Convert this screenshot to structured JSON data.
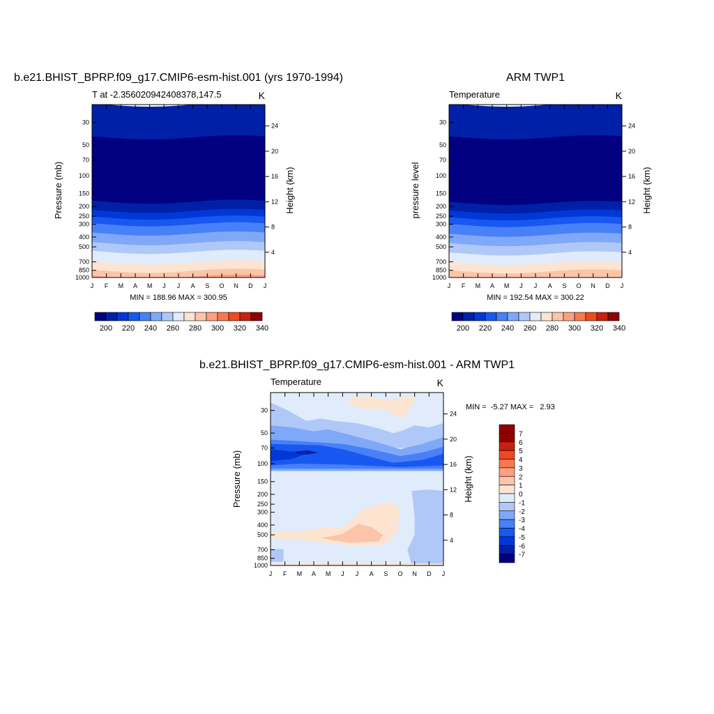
{
  "chart_data": [
    {
      "type": "heatmap",
      "id": "model",
      "main_title": "b.e21.BHIST_BPRP.f09_g17.CMIP6-esm-hist.001 (yrs 1970-1994)",
      "left_string": "T at -2.356020942408378,147.5",
      "right_string": "K",
      "ylabel": "Pressure (mb)",
      "ylabel_right": "Height (km)",
      "x_ticks": [
        "J",
        "F",
        "M",
        "A",
        "M",
        "J",
        "J",
        "A",
        "S",
        "O",
        "N",
        "D",
        "J"
      ],
      "y_ticks": [
        30,
        50,
        70,
        100,
        150,
        200,
        250,
        300,
        400,
        500,
        700,
        850,
        1000
      ],
      "y_ticks_right": [
        24,
        20,
        16,
        12,
        8,
        4
      ],
      "ylim": [
        1000,
        20
      ],
      "scale": "log-pressure",
      "stats": "MIN = 188.96 MAX = 300.95",
      "levels": [
        200,
        210,
        220,
        230,
        240,
        250,
        260,
        270,
        280,
        290,
        300,
        310,
        320,
        330,
        340
      ],
      "colorbar_labels": [
        "200",
        "220",
        "240",
        "260",
        "280",
        "300",
        "320",
        "340"
      ],
      "colorbar_orientation": "horizontal",
      "bands": [
        {
          "top": 20,
          "bottom": 42,
          "value": 215
        },
        {
          "top": 42,
          "bottom": 65,
          "value": 205
        },
        {
          "top": 65,
          "bottom": 140,
          "value": 195
        },
        {
          "top": 140,
          "bottom": 180,
          "value": 205
        },
        {
          "top": 180,
          "bottom": 222,
          "value": 215
        },
        {
          "top": 222,
          "bottom": 258,
          "value": 225
        },
        {
          "top": 258,
          "bottom": 300,
          "value": 235
        },
        {
          "top": 300,
          "bottom": 370,
          "value": 245
        },
        {
          "top": 370,
          "bottom": 460,
          "value": 255
        },
        {
          "top": 460,
          "bottom": 560,
          "value": 265
        },
        {
          "top": 560,
          "bottom": 710,
          "value": 275
        },
        {
          "top": 710,
          "bottom": 860,
          "value": 285
        },
        {
          "top": 860,
          "bottom": 980,
          "value": 295
        },
        {
          "top": 980,
          "bottom": 1000,
          "value": 305
        }
      ]
    },
    {
      "type": "heatmap",
      "id": "obs",
      "main_title": "ARM TWP1",
      "left_string": "Temperature",
      "right_string": "K",
      "ylabel": "pressure level",
      "ylabel_right": "Height (km)",
      "x_ticks": [
        "J",
        "F",
        "M",
        "A",
        "M",
        "J",
        "J",
        "A",
        "S",
        "O",
        "N",
        "D",
        "J"
      ],
      "y_ticks": [
        30,
        50,
        70,
        100,
        150,
        200,
        250,
        300,
        400,
        500,
        700,
        850,
        1000
      ],
      "y_ticks_right": [
        24,
        20,
        16,
        12,
        8,
        4
      ],
      "ylim": [
        1000,
        20
      ],
      "scale": "log-pressure",
      "stats": "MIN = 192.54 MAX = 300.22",
      "levels": [
        200,
        210,
        220,
        230,
        240,
        250,
        260,
        270,
        280,
        290,
        300,
        310,
        320,
        330,
        340
      ],
      "colorbar_labels": [
        "200",
        "220",
        "240",
        "260",
        "280",
        "300",
        "320",
        "340"
      ],
      "colorbar_orientation": "horizontal",
      "bands": [
        {
          "top": 20,
          "bottom": 42,
          "value": 215
        },
        {
          "top": 42,
          "bottom": 62,
          "value": 205
        },
        {
          "top": 62,
          "bottom": 140,
          "value": 195
        },
        {
          "top": 140,
          "bottom": 185,
          "value": 205
        },
        {
          "top": 185,
          "bottom": 225,
          "value": 215
        },
        {
          "top": 225,
          "bottom": 262,
          "value": 225
        },
        {
          "top": 262,
          "bottom": 305,
          "value": 235
        },
        {
          "top": 305,
          "bottom": 380,
          "value": 245
        },
        {
          "top": 380,
          "bottom": 470,
          "value": 255
        },
        {
          "top": 470,
          "bottom": 580,
          "value": 265
        },
        {
          "top": 580,
          "bottom": 720,
          "value": 275
        },
        {
          "top": 720,
          "bottom": 870,
          "value": 285
        },
        {
          "top": 870,
          "bottom": 1000,
          "value": 295
        }
      ]
    },
    {
      "type": "heatmap",
      "id": "diff",
      "main_title": "b.e21.BHIST_BPRP.f09_g17.CMIP6-esm-hist.001 - ARM TWP1",
      "left_string": "Temperature",
      "right_string": "K",
      "ylabel": "Pressure (mb)",
      "ylabel_right": "Height (km)",
      "x_ticks": [
        "J",
        "F",
        "M",
        "A",
        "M",
        "J",
        "J",
        "A",
        "S",
        "O",
        "N",
        "D",
        "J"
      ],
      "y_ticks": [
        30,
        50,
        70,
        100,
        150,
        200,
        250,
        300,
        400,
        500,
        700,
        850,
        1000
      ],
      "y_ticks_right": [
        24,
        20,
        16,
        12,
        8,
        4
      ],
      "ylim": [
        1000,
        20
      ],
      "scale": "log-pressure",
      "stats": "MIN =  -5.27 MAX =   2.93",
      "levels": [
        -7,
        -6,
        -5,
        -4,
        -3,
        -2,
        -1,
        0,
        1,
        2,
        3,
        4,
        5,
        6,
        7
      ],
      "colorbar_labels": [
        "7",
        "6",
        "5",
        "4",
        "3",
        "2",
        "1",
        "0",
        "-1",
        "-2",
        "-3",
        "-4",
        "-5",
        "-6",
        "-7"
      ],
      "colorbar_orientation": "vertical",
      "background_value": 0.5,
      "regions": [
        {
          "value": -0.5,
          "points": [
            [
              0,
              25
            ],
            [
              1.2,
              30
            ],
            [
              2.5,
              38
            ],
            [
              3.5,
              36
            ],
            [
              4.5,
              38
            ],
            [
              6,
              40
            ],
            [
              7.5,
              45
            ],
            [
              8.5,
              50
            ],
            [
              9.2,
              47
            ],
            [
              10,
              42
            ],
            [
              11,
              44
            ],
            [
              12,
              40
            ],
            [
              12,
              70
            ],
            [
              0,
              70
            ]
          ]
        },
        {
          "value": -1.5,
          "points": [
            [
              0,
              42
            ],
            [
              1.5,
              44
            ],
            [
              3,
              48
            ],
            [
              4,
              46
            ],
            [
              5.5,
              52
            ],
            [
              7.5,
              62
            ],
            [
              9,
              72
            ],
            [
              10.5,
              64
            ],
            [
              12,
              55
            ],
            [
              12,
              118
            ],
            [
              0,
              118
            ]
          ]
        },
        {
          "value": -2.5,
          "points": [
            [
              0,
              58
            ],
            [
              2,
              60
            ],
            [
              3.5,
              62
            ],
            [
              5,
              64
            ],
            [
              7,
              72
            ],
            [
              9,
              84
            ],
            [
              10.5,
              78
            ],
            [
              12,
              68
            ],
            [
              12,
              112
            ],
            [
              0,
              112
            ]
          ]
        },
        {
          "value": -3.5,
          "points": [
            [
              0,
              64
            ],
            [
              2,
              65
            ],
            [
              3.5,
              66
            ],
            [
              5,
              72
            ],
            [
              7,
              86
            ],
            [
              8.5,
              98
            ],
            [
              10.5,
              92
            ],
            [
              12,
              80
            ],
            [
              12,
              104
            ],
            [
              9,
              108
            ],
            [
              5,
              102
            ],
            [
              2,
              100
            ],
            [
              0,
              104
            ]
          ]
        },
        {
          "value": -4.5,
          "points": [
            [
              0,
              72
            ],
            [
              1.5,
              76
            ],
            [
              2.5,
              80
            ],
            [
              1.5,
              90
            ],
            [
              0,
              94
            ]
          ]
        },
        {
          "value": -5.5,
          "points": [
            [
              1.7,
              76
            ],
            [
              2.6,
              74
            ],
            [
              3.3,
              78
            ],
            [
              2.6,
              81
            ],
            [
              1.8,
              80
            ]
          ]
        },
        {
          "value": 1.5,
          "points": [
            [
              5.5,
              22
            ],
            [
              7,
              22
            ],
            [
              8,
              24
            ],
            [
              9.3,
              22
            ],
            [
              10.2,
              22
            ],
            [
              9.7,
              28
            ],
            [
              9.2,
              36
            ],
            [
              8.5,
              33
            ],
            [
              8,
              29
            ],
            [
              6.5,
              29
            ],
            [
              5.5,
              26
            ]
          ]
        },
        {
          "value": -0.5,
          "points": [
            [
              9.8,
              185
            ],
            [
              11,
              180
            ],
            [
              12,
              185
            ],
            [
              12,
              990
            ],
            [
              9.8,
              990
            ],
            [
              9.5,
              700
            ],
            [
              10,
              500
            ],
            [
              10,
              330
            ]
          ]
        },
        {
          "value": -0.5,
          "points": [
            [
              0,
              690
            ],
            [
              0.9,
              690
            ],
            [
              0.9,
              920
            ],
            [
              0,
              920
            ]
          ]
        },
        {
          "value": 1.5,
          "points": [
            [
              0,
              470
            ],
            [
              2,
              460
            ],
            [
              3.5,
              430
            ],
            [
              5,
              420
            ],
            [
              6.5,
              280
            ],
            [
              7.5,
              250
            ],
            [
              8.5,
              240
            ],
            [
              9,
              290
            ],
            [
              8.8,
              460
            ],
            [
              8,
              620
            ],
            [
              6,
              640
            ],
            [
              4,
              600
            ],
            [
              2,
              560
            ],
            [
              0,
              540
            ]
          ]
        },
        {
          "value": 2.5,
          "points": [
            [
              3.5,
              540
            ],
            [
              5,
              490
            ],
            [
              6.1,
              390
            ],
            [
              7,
              420
            ],
            [
              7.8,
              500
            ],
            [
              7.5,
              580
            ],
            [
              5.5,
              600
            ]
          ]
        },
        {
          "value": 1.5,
          "points": [
            [
              0,
              960
            ],
            [
              5,
              940
            ],
            [
              12,
              960
            ],
            [
              12,
              1000
            ],
            [
              0,
              1000
            ]
          ]
        }
      ]
    }
  ]
}
